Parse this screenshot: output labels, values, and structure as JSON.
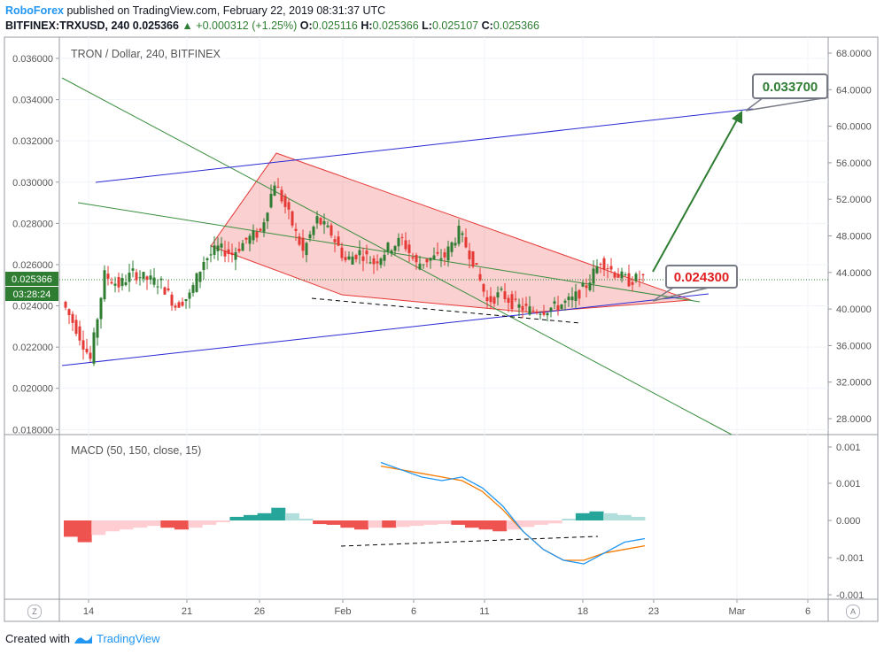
{
  "header": {
    "brand": "RoboForex",
    "published": "published on TradingView.com, February 22, 2019 08:31:37 UTC",
    "symbol": "BITFINEX:TRXUSD, 240",
    "last": "0.025366",
    "change": "+0.000312 (+1.25%)",
    "o_label": "O:",
    "o_value": "0.025116",
    "h_label": "H:",
    "h_value": "0.025366",
    "l_label": "L:",
    "l_value": "0.025107",
    "c_label": "C:",
    "c_value": "0.025366"
  },
  "chart_data": [
    {
      "type": "candlestick",
      "title": "TRON / Dollar, 240, BITFINEX",
      "ylim": [
        0.0178,
        0.0369
      ],
      "left_axis_ticks": [
        "0.036000",
        "0.034000",
        "0.032000",
        "0.030000",
        "0.028000",
        "0.026000",
        "0.024000",
        "0.022000",
        "0.020000",
        "0.018000"
      ],
      "right_axis_ticks": [
        "68.0000",
        "64.0000",
        "60.0000",
        "56.0000",
        "52.0000",
        "48.0000",
        "44.0000",
        "40.0000",
        "36.0000",
        "32.0000",
        "28.0000"
      ],
      "x_ticks": [
        "14",
        "21",
        "26",
        "Feb",
        "6",
        "11",
        "18",
        "23",
        "Mar",
        "6"
      ],
      "price_label": "0.025366",
      "countdown_label": "03:28:24",
      "price_path": [
        [
          "Jan 12",
          0.0242
        ],
        [
          "Jan 13",
          0.0229
        ],
        [
          "Jan 14",
          0.0214
        ],
        [
          "Jan 15",
          0.0255
        ],
        [
          "Jan 16",
          0.025
        ],
        [
          "Jan 17",
          0.0256
        ],
        [
          "Jan 18",
          0.0253
        ],
        [
          "Jan 19",
          0.0251
        ],
        [
          "Jan 20",
          0.024
        ],
        [
          "Jan 21",
          0.0245
        ],
        [
          "Jan 22",
          0.0262
        ],
        [
          "Jan 23",
          0.0268
        ],
        [
          "Jan 24",
          0.0265
        ],
        [
          "Jan 25",
          0.0272
        ],
        [
          "Jan 26",
          0.0276
        ],
        [
          "Jan 27",
          0.03
        ],
        [
          "Jan 28",
          0.0284
        ],
        [
          "Jan 29",
          0.0266
        ],
        [
          "Jan 30",
          0.0282
        ],
        [
          "Jan 31",
          0.0275
        ],
        [
          "Feb 1",
          0.0262
        ],
        [
          "Feb 2",
          0.0266
        ],
        [
          "Feb 3",
          0.0261
        ],
        [
          "Feb 4",
          0.0268
        ],
        [
          "Feb 5",
          0.0272
        ],
        [
          "Feb 6",
          0.026
        ],
        [
          "Feb 7",
          0.0263
        ],
        [
          "Feb 8",
          0.0264
        ],
        [
          "Feb 9",
          0.0276
        ],
        [
          "Feb 10",
          0.0262
        ],
        [
          "Feb 11",
          0.0242
        ],
        [
          "Feb 12",
          0.0246
        ],
        [
          "Feb 13",
          0.024
        ],
        [
          "Feb 14",
          0.0238
        ],
        [
          "Feb 15",
          0.0238
        ],
        [
          "Feb 16",
          0.024
        ],
        [
          "Feb 17",
          0.0243
        ],
        [
          "Feb 18",
          0.025
        ],
        [
          "Feb 19",
          0.0262
        ],
        [
          "Feb 20",
          0.0256
        ],
        [
          "Feb 21",
          0.0252
        ],
        [
          "Feb 22",
          0.0254
        ]
      ],
      "annotations": [
        {
          "text": "0.033700",
          "color": "#2e7d32"
        },
        {
          "text": "0.024300",
          "color": "#e02020"
        }
      ]
    },
    {
      "type": "line",
      "title": "MACD (50, 150, close, 15)",
      "axis_ticks": [
        "0.001",
        "0.001",
        "0.000",
        "-0.001",
        "-0.001"
      ],
      "histogram": [
        -0.00045,
        -0.0006,
        -0.0004,
        -0.0003,
        -0.00025,
        -0.0002,
        -0.00015,
        -0.0002,
        -0.00025,
        -0.0002,
        -0.00012,
        -5e-05,
        0.0001,
        0.00015,
        0.0002,
        0.00035,
        0.0002,
        5e-05,
        -0.0001,
        -0.00012,
        -0.0002,
        -0.00025,
        -0.0002,
        -0.0002,
        -0.00018,
        -0.00015,
        -0.00012,
        -0.0001,
        -0.00012,
        -0.0002,
        -0.00025,
        -0.0003,
        -0.00025,
        -0.00018,
        -0.00012,
        -8e-05,
        5e-05,
        0.0002,
        0.00025,
        0.0002,
        0.00015,
        0.0001
      ],
      "macd": [
        0.0016,
        0.0014,
        0.0012,
        0.0011,
        0.0012,
        0.0009,
        0.0004,
        -0.0003,
        -0.0008,
        -0.0011,
        -0.0012,
        -0.0009,
        -0.0006,
        -0.0005
      ],
      "signal": [
        0.0015,
        0.0014,
        0.0013,
        0.0012,
        0.0011,
        0.0008,
        0.0003,
        -0.0003,
        -0.0008,
        -0.0011,
        -0.0011,
        -0.0009,
        -0.0008,
        -0.0007
      ]
    }
  ],
  "footer": {
    "created_with": "Created with",
    "tradingview": "TradingView"
  },
  "corners": {
    "left": "Z",
    "right": "A"
  }
}
